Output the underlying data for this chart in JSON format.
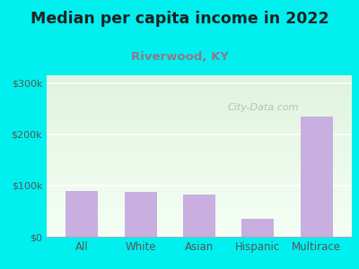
{
  "title": "Median per capita income in 2022",
  "subtitle": "Riverwood, KY",
  "categories": [
    "All",
    "White",
    "Asian",
    "Hispanic",
    "Multirace"
  ],
  "values": [
    90000,
    88000,
    82000,
    35000,
    235000
  ],
  "bar_color": "#c9aee0",
  "background_outer": "#00f0f0",
  "plot_bg_top": "#dff2df",
  "plot_bg_bottom": "#f5fff5",
  "yticks": [
    0,
    100000,
    200000,
    300000
  ],
  "ytick_labels": [
    "$0",
    "$100k",
    "$200k",
    "$300k"
  ],
  "ylim": [
    0,
    315000
  ],
  "title_fontsize": 12.5,
  "title_color": "#222222",
  "subtitle_fontsize": 9.5,
  "subtitle_color": "#8b7a8b",
  "axis_label_color": "#555555",
  "tick_label_fontsize": 8,
  "watermark": "City-Data.com",
  "grid_color": "#ffffff",
  "bar_width": 0.55
}
